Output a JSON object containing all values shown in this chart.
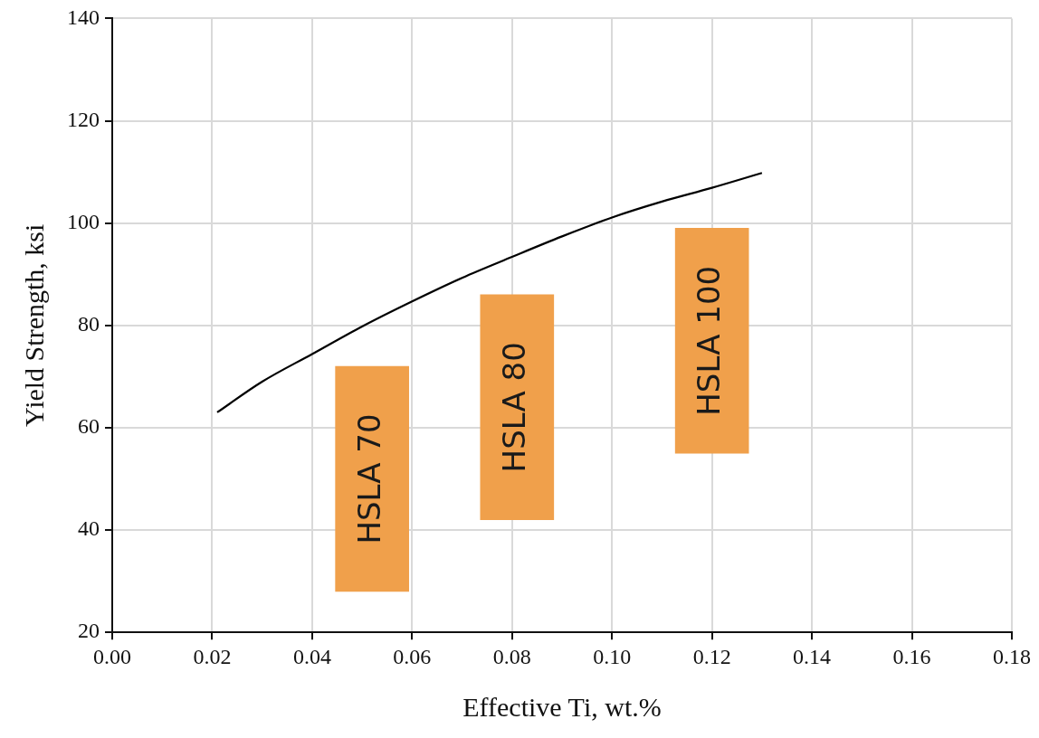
{
  "chart_data": {
    "type": "line",
    "xlabel": "Effective Ti, wt.%",
    "ylabel": "Yield Strength, ksi",
    "series": [
      {
        "color": "#000000",
        "x": [
          0.021,
          0.03,
          0.04,
          0.05,
          0.06,
          0.07,
          0.08,
          0.09,
          0.1,
          0.11,
          0.12,
          0.13
        ],
        "values": [
          63,
          69,
          74.4,
          79.8,
          84.7,
          89.3,
          93.4,
          97.4,
          101.1,
          104.2,
          106.9,
          109.8
        ]
      },
      {
        "type": "bar",
        "color": "#f0a04b",
        "x": [
          0.052,
          0.081,
          0.12
        ],
        "base": [
          28,
          42,
          55
        ],
        "values": [
          44,
          44,
          44
        ],
        "value_labels": [
          "HSLA 70",
          "HSLA 80",
          "HSLA 100"
        ]
      }
    ],
    "xlim": [
      0,
      0.18
    ],
    "xticks": [
      {
        "value": 0,
        "label": "0.00"
      },
      {
        "value": 0.02,
        "label": "0.02"
      },
      {
        "value": 0.04,
        "label": "0.04"
      },
      {
        "value": 0.06,
        "label": "0.06"
      },
      {
        "value": 0.08,
        "label": "0.08"
      },
      {
        "value": 0.1,
        "label": "0.10"
      },
      {
        "value": 0.12,
        "label": "0.12"
      },
      {
        "value": 0.14,
        "label": "0.14"
      },
      {
        "value": 0.16,
        "label": "0.16"
      },
      {
        "value": 0.18,
        "label": "0.18"
      }
    ],
    "ylim": [
      20,
      140
    ],
    "yticks": [
      20,
      40,
      60,
      80,
      100,
      120,
      140
    ],
    "grid": true,
    "marker": "none",
    "line_style": "solid"
  }
}
